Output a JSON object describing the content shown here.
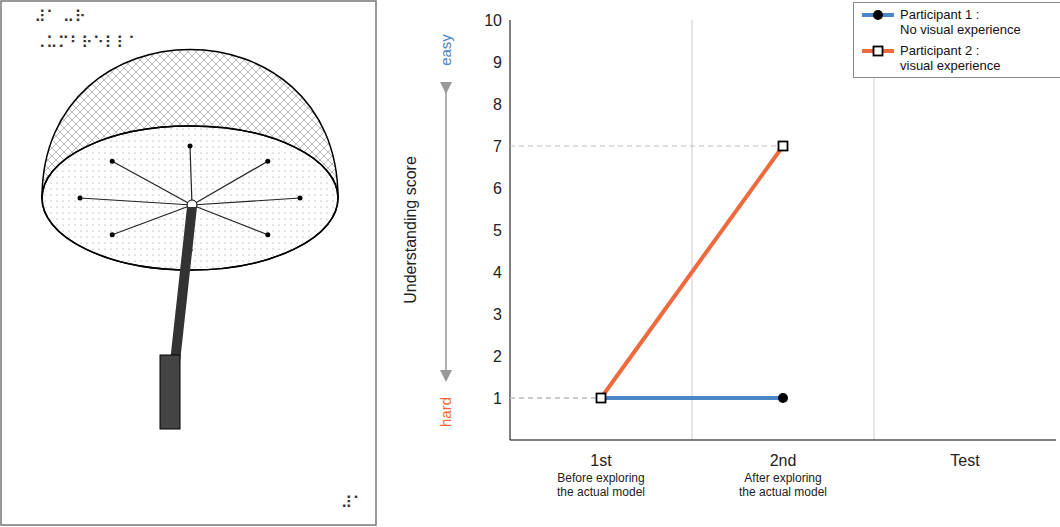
{
  "chart_data": {
    "type": "line",
    "categories": [
      "1st",
      "2nd",
      "Test"
    ],
    "category_notes": [
      "Before exploring the actual model",
      "After exploring the actual model",
      null
    ],
    "y_label": "Understanding score",
    "annotations": [
      "easy",
      "hard"
    ],
    "ylim": [
      0,
      10
    ],
    "yticks": [
      1,
      2,
      3,
      4,
      5,
      6,
      7,
      8,
      9,
      10
    ],
    "grid": true,
    "legend": "upper right",
    "series": [
      {
        "name": "Participant 1 : No visual experience",
        "color": "#4a86c8",
        "marker": "circle",
        "values": [
          1,
          1,
          null
        ]
      },
      {
        "name": "Participant 2 : visual experience",
        "color": "#ee6a3c",
        "marker": "square",
        "values": [
          1,
          7,
          null
        ]
      }
    ]
  },
  "tactile_image": {
    "braille": [
      "⠼⠁ ⠤⠗",
      "⠠⠥⠍⠃⠗⠑⠇⠇⠁",
      "⠼⠁"
    ]
  }
}
